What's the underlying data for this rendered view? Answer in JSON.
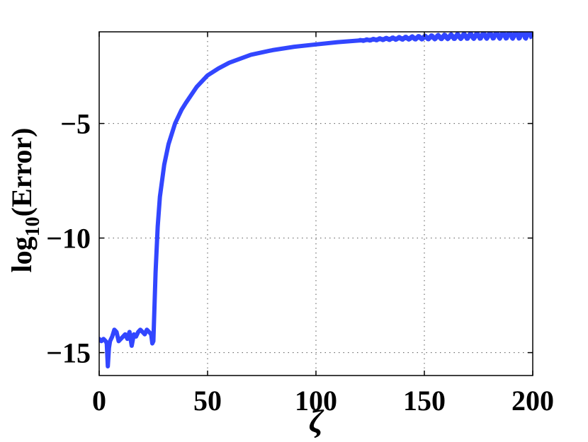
{
  "chart_data": {
    "type": "line",
    "xlabel": "ζ",
    "ylabel": {
      "base": "log",
      "subscript": "10",
      "rest": "(Error)"
    },
    "xlim": [
      0,
      200
    ],
    "ylim": [
      -16,
      -1
    ],
    "xticks": [
      0,
      50,
      100,
      150,
      200
    ],
    "xtick_labels": [
      "0",
      "50",
      "100",
      "150",
      "200"
    ],
    "yticks": [
      -5,
      -10,
      -15
    ],
    "ytick_labels": [
      "−5",
      "−10",
      "−15"
    ],
    "grid": true,
    "legend": "none",
    "series": [
      {
        "color": "#3246ff",
        "x": [
          0,
          1,
          2,
          3,
          3.5,
          4,
          4.5,
          5,
          6,
          7,
          8,
          9,
          10,
          11,
          12,
          13,
          14,
          15,
          16,
          17,
          18,
          19,
          20,
          21,
          22,
          23,
          24,
          24.5,
          25,
          26,
          27,
          28,
          30,
          32,
          35,
          38,
          40,
          45,
          50,
          55,
          60,
          70,
          80,
          90,
          100,
          110,
          120,
          130,
          140,
          150,
          160,
          170,
          180,
          190,
          200
        ],
        "y": [
          -14.4,
          -14.5,
          -14.4,
          -14.5,
          -14.6,
          -15.6,
          -14.8,
          -14.5,
          -14.3,
          -14.0,
          -14.1,
          -14.5,
          -14.4,
          -14.3,
          -14.2,
          -14.4,
          -14.1,
          -14.7,
          -14.2,
          -14.3,
          -14.1,
          -14.0,
          -14.1,
          -14.2,
          -14.0,
          -14.1,
          -14.2,
          -14.6,
          -14.5,
          -11.5,
          -9.5,
          -8.2,
          -6.8,
          -5.9,
          -5.0,
          -4.4,
          -4.1,
          -3.4,
          -2.9,
          -2.6,
          -2.35,
          -2.0,
          -1.8,
          -1.65,
          -1.55,
          -1.45,
          -1.38,
          -1.32,
          -1.28,
          -1.25,
          -1.22,
          -1.19,
          -1.16,
          -1.14,
          -1.12
        ]
      }
    ]
  }
}
